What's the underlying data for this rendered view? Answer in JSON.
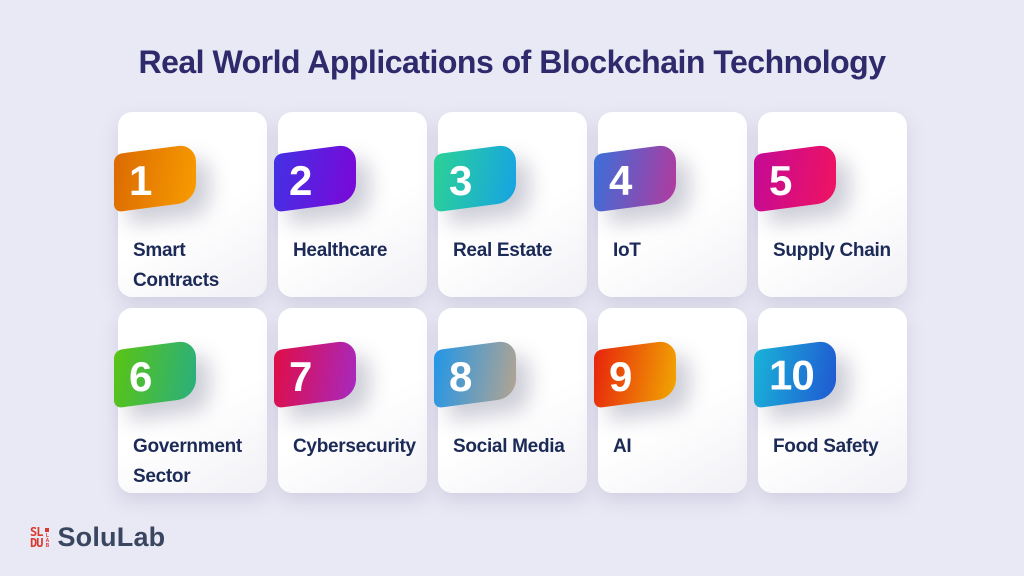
{
  "background": "#e9e9f5",
  "title": {
    "text": "Real World Applications of Blockchain Technology",
    "color": "#2f2a6b"
  },
  "cards": [
    {
      "number": "1",
      "label": "Smart Contracts",
      "gradient_from": "#db6a02",
      "gradient_to": "#f89c00"
    },
    {
      "number": "2",
      "label": "Healthcare",
      "gradient_from": "#4331e4",
      "gradient_to": "#7b07d8"
    },
    {
      "number": "3",
      "label": "Real Estate",
      "gradient_from": "#2bd295",
      "gradient_to": "#17a3e4"
    },
    {
      "number": "4",
      "label": "IoT",
      "gradient_from": "#3b6fd9",
      "gradient_to": "#b23a9e"
    },
    {
      "number": "5",
      "label": "Supply Chain",
      "gradient_from": "#c40a96",
      "gradient_to": "#f01361"
    },
    {
      "number": "6",
      "label": "Government Sector",
      "gradient_from": "#5ac413",
      "gradient_to": "#2aaf7d"
    },
    {
      "number": "7",
      "label": "Cybersecurity",
      "gradient_from": "#e00d46",
      "gradient_to": "#a729c0"
    },
    {
      "number": "8",
      "label": "Social Media",
      "gradient_from": "#2196e8",
      "gradient_to": "#b3a491"
    },
    {
      "number": "9",
      "label": "AI",
      "gradient_from": "#e7230c",
      "gradient_to": "#f1a702"
    },
    {
      "number": "10",
      "label": "Food Safety",
      "gradient_from": "#19b3d8",
      "gradient_to": "#2058d2"
    }
  ],
  "footer": {
    "brand": "SoluLab",
    "brand_color": "#3a4660",
    "logo_color": "#d93a2e",
    "logo_rows": [
      "SL",
      "DU"
    ],
    "logo_side_text": "LAB"
  }
}
